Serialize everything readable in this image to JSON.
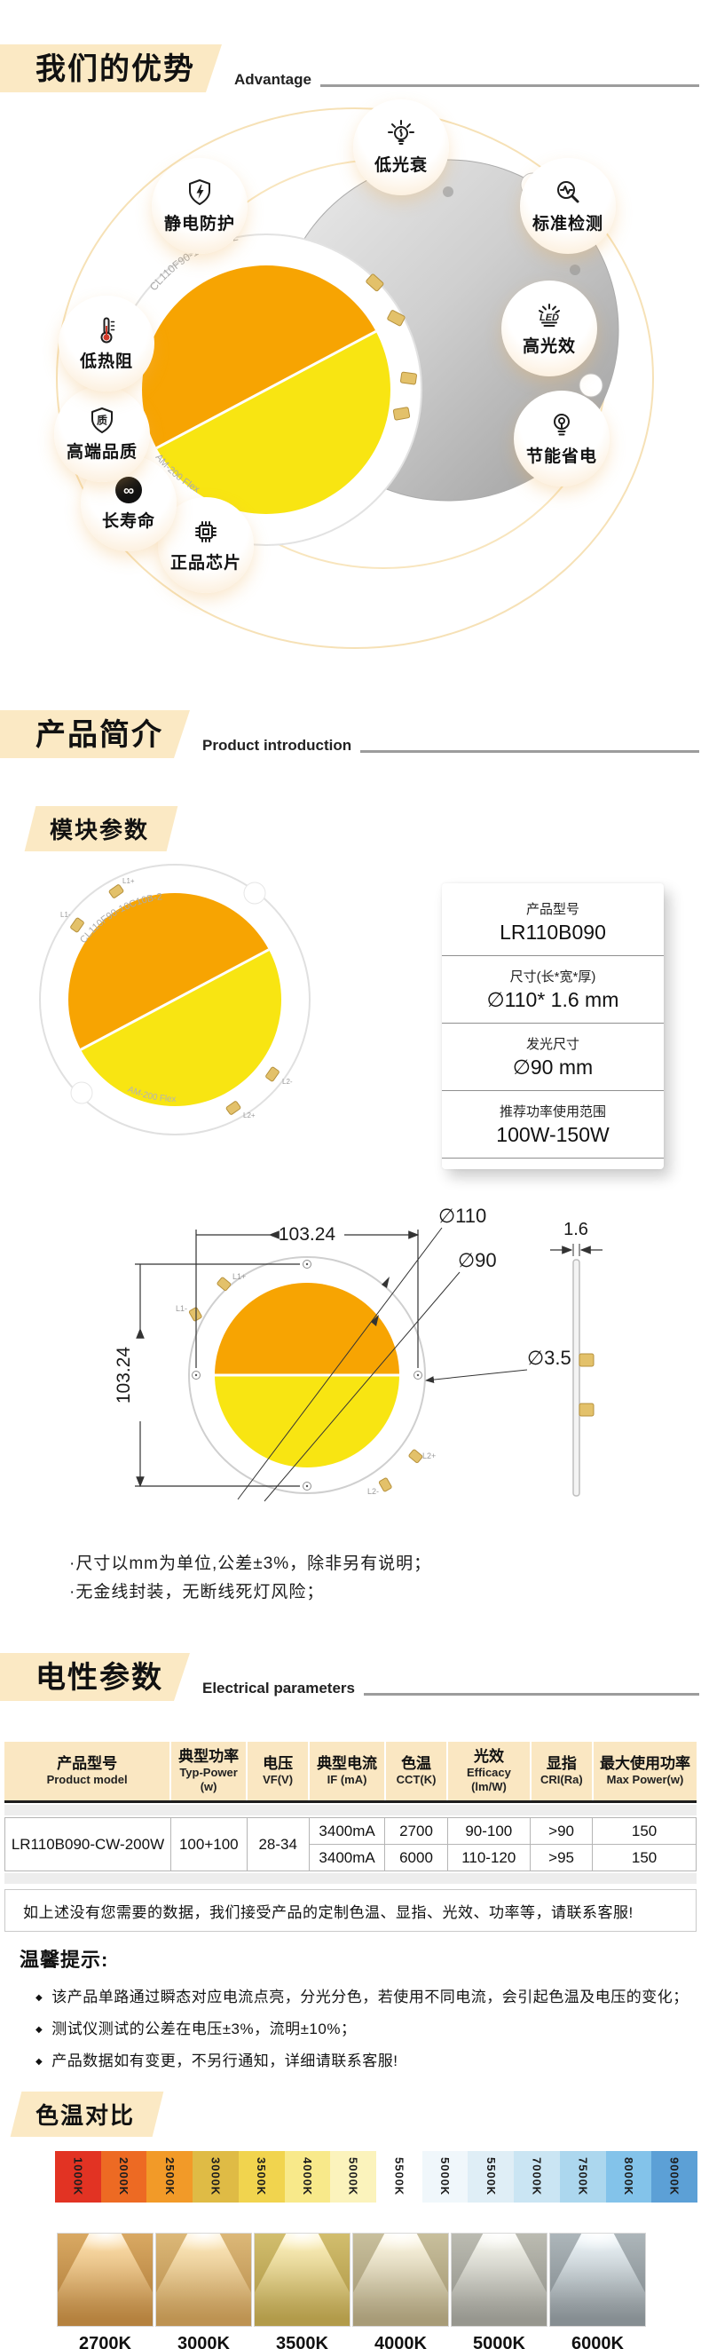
{
  "colors": {
    "accent_cream": "#FBE9C4",
    "table_header": "#FAE7C2",
    "cob_warm": "#F7A402",
    "cob_cool": "#F8E512",
    "thermometer_red": "#D03A2B"
  },
  "sections": {
    "advantage": {
      "title_zh": "我们的优势",
      "title_en": "Advantage"
    },
    "intro": {
      "title_zh": "产品简介",
      "title_en": "Product introduction"
    },
    "electrical": {
      "title_zh": "电性参数",
      "title_en": "Electrical parameters"
    }
  },
  "advantage": {
    "badges": [
      {
        "label": "低光衰"
      },
      {
        "label": "标准检测"
      },
      {
        "label": "高光效"
      },
      {
        "label": "节能省电"
      },
      {
        "label": "正品芯片"
      },
      {
        "label": "长寿命"
      },
      {
        "label": "高端品质"
      },
      {
        "label": "低热阻"
      },
      {
        "label": "静电防护"
      }
    ],
    "board_model": "CL110F90-10C10B-2",
    "board_brand": "AM-200 Flex",
    "led_text": "LED"
  },
  "module": {
    "subtitle": "模块参数",
    "board_model": "CL110F90-10C10B-2",
    "board_brand": "AM-200 Flex",
    "pads": [
      "L1+",
      "L1-",
      "L2+",
      "L2-"
    ],
    "specs": [
      {
        "label": "产品型号",
        "value": "LR110B090"
      },
      {
        "label": "尺寸(长*宽*厚)",
        "value": "∅110* 1.6 mm"
      },
      {
        "label": "发光尺寸",
        "value": "∅90 mm"
      },
      {
        "label": "推荐功率使用范围",
        "value": "100W-150W"
      }
    ],
    "drawing": {
      "width": "103.24",
      "height": "103.24",
      "outer": "∅110",
      "emitting": "∅90",
      "hole": "∅3.5",
      "thickness": "1.6"
    },
    "notes": [
      "·尺寸以mm为单位,公差±3%，除非另有说明；",
      "·无金线封装，无断线死灯风险；"
    ]
  },
  "electrical": {
    "headers": [
      {
        "zh": "产品型号",
        "en": "Product model"
      },
      {
        "zh": "典型功率",
        "en": "Typ-Power",
        "unit": "(w)"
      },
      {
        "zh": "电压",
        "en": "VF(V)"
      },
      {
        "zh": "典型电流",
        "en": "IF (mA)"
      },
      {
        "zh": "色温",
        "en": "CCT(K)"
      },
      {
        "zh": "光效",
        "en": "Efficacy",
        "unit": "(lm/W)"
      },
      {
        "zh": "显指",
        "en": "CRI(Ra)"
      },
      {
        "zh": "最大使用功率",
        "en": "Max Power(w)"
      }
    ],
    "row": {
      "model": "LR110B090-CW-200W",
      "typ_power": "100+100",
      "vf": "28-34",
      "sub": [
        {
          "if": "3400mA",
          "cct": "2700",
          "eff": "90-100",
          "cri": ">90",
          "max": "150"
        },
        {
          "if": "3400mA",
          "cct": "6000",
          "eff": "110-120",
          "cri": ">95",
          "max": "150"
        }
      ]
    },
    "custom_note": "如上述没有您需要的数据，我们接受产品的定制色温、显指、光效、功率等，请联系客服!",
    "tips_title": "温馨提示:",
    "tips": [
      "该产品单路通过瞬态对应电流点亮，分光分色，若使用不同电流，会引起色温及电压的变化；",
      "测试仪测试的公差在电压±3%，流明±10%；",
      "产品数据如有变更，不另行通知，详细请联系客服!"
    ]
  },
  "cct": {
    "subtitle": "色温对比",
    "swatches": [
      {
        "label": "1000K",
        "color": "#E23323"
      },
      {
        "label": "2000K",
        "color": "#ED6A23"
      },
      {
        "label": "2500K",
        "color": "#F29A28"
      },
      {
        "label": "3000K",
        "color": "#DFBB45"
      },
      {
        "label": "3500K",
        "color": "#F1D44E"
      },
      {
        "label": "4000K",
        "color": "#F8E98A"
      },
      {
        "label": "5000K",
        "color": "#FBF3BC"
      },
      {
        "label": "5500K",
        "color": "#FFFFFF"
      },
      {
        "label": "5000K",
        "color": "#F0F7FB"
      },
      {
        "label": "5500K",
        "color": "#DFEEF6"
      },
      {
        "label": "7000K",
        "color": "#CAE5F3"
      },
      {
        "label": "7500K",
        "color": "#ACD7EE"
      },
      {
        "label": "8000K",
        "color": "#83C3EA"
      },
      {
        "label": "9000K",
        "color": "#5CA0D6"
      }
    ],
    "beams": [
      {
        "label": "2700K",
        "base": "#B5823F",
        "mid": "#D9A963",
        "glow": "#FFE2B0"
      },
      {
        "label": "3000K",
        "base": "#BD9352",
        "mid": "#DCB878",
        "glow": "#FFEBC0"
      },
      {
        "label": "3500K",
        "base": "#B29B4A",
        "mid": "#D2BE6E",
        "glow": "#FFF3C2"
      },
      {
        "label": "4000K",
        "base": "#A89C78",
        "mid": "#C8BF9C",
        "glow": "#FFF9E6"
      },
      {
        "label": "5000K",
        "base": "#97978F",
        "mid": "#BBBBB1",
        "glow": "#F7F7EF"
      },
      {
        "label": "6000K",
        "base": "#868E92",
        "mid": "#ADB6BA",
        "glow": "#EFF7FB"
      }
    ]
  }
}
